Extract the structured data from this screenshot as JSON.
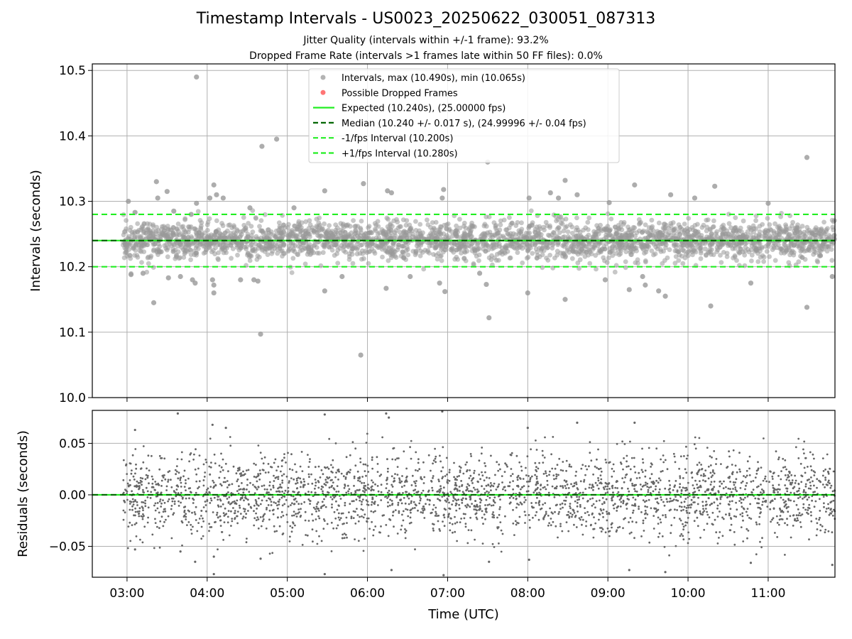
{
  "chart_data": [
    {
      "type": "scatter",
      "title": "Timestamp Intervals - US0023_20250622_030051_087313",
      "subtitles": [
        "Jitter Quality (intervals within +/-1 frame): 93.2%",
        "Dropped Frame Rate (intervals >1 frames late within 50 FF files): 0.0%"
      ],
      "xlabel": "",
      "ylabel": "Intervals (seconds)",
      "ylim": [
        10.0,
        10.51
      ],
      "xlim": [
        "02:34",
        "11:50"
      ],
      "yticks": [
        {
          "value": 10.0,
          "label": "10.0"
        },
        {
          "value": 10.1,
          "label": "10.1"
        },
        {
          "value": 10.2,
          "label": "10.2"
        },
        {
          "value": 10.3,
          "label": "10.3"
        },
        {
          "value": 10.4,
          "label": "10.4"
        },
        {
          "value": 10.5,
          "label": "10.5"
        }
      ],
      "grid": true,
      "legend_position": "top-center",
      "legend": [
        {
          "label": "Intervals, max (10.490s), min (10.065s)",
          "marker": "dot",
          "color": "#999999"
        },
        {
          "label": "Possible Dropped Frames",
          "marker": "dot",
          "color": "#ff6666"
        },
        {
          "label": "Expected (10.240s), (25.00000 fps)",
          "marker": "solid",
          "color": "#22ee22"
        },
        {
          "label": "Median (10.240 +/- 0.017 s), (24.99996 +/- 0.04 fps)",
          "marker": "dashed",
          "color": "#006400"
        },
        {
          "label": "-1/fps Interval (10.200s)",
          "marker": "dashed",
          "color": "#22ee22"
        },
        {
          "label": "+1/fps Interval (10.280s)",
          "marker": "dashed",
          "color": "#22ee22"
        }
      ],
      "lines": {
        "expected": 10.24,
        "median": 10.24,
        "minus_one_fps": 10.2,
        "plus_one_fps": 10.28
      },
      "series": [
        {
          "name": "Intervals, max (10.490s), min (10.065s)",
          "color": "#999999",
          "points": [
            {
              "x": "03:01",
              "y": 10.3
            },
            {
              "x": "03:03",
              "y": 10.188
            },
            {
              "x": "03:06",
              "y": 10.283
            },
            {
              "x": "03:12",
              "y": 10.19
            },
            {
              "x": "03:20",
              "y": 10.145
            },
            {
              "x": "03:22",
              "y": 10.33
            },
            {
              "x": "03:23",
              "y": 10.305
            },
            {
              "x": "03:30",
              "y": 10.315
            },
            {
              "x": "03:31",
              "y": 10.183
            },
            {
              "x": "03:35",
              "y": 10.285
            },
            {
              "x": "03:40",
              "y": 10.185
            },
            {
              "x": "03:48",
              "y": 10.28
            },
            {
              "x": "03:49",
              "y": 10.18
            },
            {
              "x": "03:51",
              "y": 10.175
            },
            {
              "x": "03:52",
              "y": 10.297
            },
            {
              "x": "03:52",
              "y": 10.49
            },
            {
              "x": "04:02",
              "y": 10.305
            },
            {
              "x": "04:04",
              "y": 10.18
            },
            {
              "x": "04:05",
              "y": 10.16
            },
            {
              "x": "04:05",
              "y": 10.172
            },
            {
              "x": "04:05",
              "y": 10.325
            },
            {
              "x": "04:07",
              "y": 10.31
            },
            {
              "x": "04:12",
              "y": 10.305
            },
            {
              "x": "04:25",
              "y": 10.18
            },
            {
              "x": "04:32",
              "y": 10.29
            },
            {
              "x": "04:35",
              "y": 10.18
            },
            {
              "x": "04:38",
              "y": 10.178
            },
            {
              "x": "04:40",
              "y": 10.097
            },
            {
              "x": "04:41",
              "y": 10.384
            },
            {
              "x": "04:52",
              "y": 10.395
            },
            {
              "x": "05:05",
              "y": 10.29
            },
            {
              "x": "05:28",
              "y": 10.163
            },
            {
              "x": "05:28",
              "y": 10.316
            },
            {
              "x": "05:41",
              "y": 10.185
            },
            {
              "x": "05:55",
              "y": 10.065
            },
            {
              "x": "05:57",
              "y": 10.327
            },
            {
              "x": "06:14",
              "y": 10.167
            },
            {
              "x": "06:15",
              "y": 10.316
            },
            {
              "x": "06:18",
              "y": 10.313
            },
            {
              "x": "06:32",
              "y": 10.185
            },
            {
              "x": "06:54",
              "y": 10.175
            },
            {
              "x": "06:56",
              "y": 10.305
            },
            {
              "x": "06:57",
              "y": 10.318
            },
            {
              "x": "06:58",
              "y": 10.162
            },
            {
              "x": "07:24",
              "y": 10.19
            },
            {
              "x": "07:29",
              "y": 10.173
            },
            {
              "x": "07:30",
              "y": 10.36
            },
            {
              "x": "07:31",
              "y": 10.122
            },
            {
              "x": "08:00",
              "y": 10.16
            },
            {
              "x": "08:01",
              "y": 10.305
            },
            {
              "x": "08:17",
              "y": 10.313
            },
            {
              "x": "08:23",
              "y": 10.305
            },
            {
              "x": "08:28",
              "y": 10.332
            },
            {
              "x": "08:28",
              "y": 10.15
            },
            {
              "x": "08:37",
              "y": 10.31
            },
            {
              "x": "08:58",
              "y": 10.18
            },
            {
              "x": "09:01",
              "y": 10.298
            },
            {
              "x": "09:16",
              "y": 10.165
            },
            {
              "x": "09:20",
              "y": 10.325
            },
            {
              "x": "09:26",
              "y": 10.185
            },
            {
              "x": "09:28",
              "y": 10.172
            },
            {
              "x": "09:38",
              "y": 10.163
            },
            {
              "x": "09:43",
              "y": 10.155
            },
            {
              "x": "09:47",
              "y": 10.31
            },
            {
              "x": "10:05",
              "y": 10.305
            },
            {
              "x": "10:17",
              "y": 10.14
            },
            {
              "x": "10:20",
              "y": 10.323
            },
            {
              "x": "10:47",
              "y": 10.175
            },
            {
              "x": "11:00",
              "y": 10.297
            },
            {
              "x": "11:29",
              "y": 10.367
            },
            {
              "x": "11:29",
              "y": 10.138
            },
            {
              "x": "11:48",
              "y": 10.185
            }
          ]
        }
      ]
    },
    {
      "type": "scatter",
      "xlabel": "Time (UTC)",
      "ylabel": "Residuals (seconds)",
      "ylim": [
        -0.08,
        0.082
      ],
      "xlim": [
        "02:34",
        "11:50"
      ],
      "xticks": [
        "03:00",
        "04:00",
        "05:00",
        "06:00",
        "07:00",
        "08:00",
        "09:00",
        "10:00",
        "11:00"
      ],
      "yticks": [
        {
          "value": -0.05,
          "label": "−0.05"
        },
        {
          "value": 0.0,
          "label": "0.00"
        },
        {
          "value": 0.05,
          "label": "0.05"
        }
      ],
      "grid": true,
      "lines": {
        "zero": 0.0
      },
      "series": [
        {
          "name": "Residuals",
          "color": "#666666",
          "points": [
            {
              "x": "03:06",
              "y": 0.063
            },
            {
              "x": "03:06",
              "y": -0.053
            },
            {
              "x": "03:38",
              "y": 0.079
            },
            {
              "x": "03:40",
              "y": -0.055
            },
            {
              "x": "03:51",
              "y": -0.065
            },
            {
              "x": "04:04",
              "y": 0.068
            },
            {
              "x": "04:05",
              "y": -0.06
            },
            {
              "x": "04:05",
              "y": -0.077
            },
            {
              "x": "04:14",
              "y": 0.065
            },
            {
              "x": "04:40",
              "y": -0.062
            },
            {
              "x": "05:28",
              "y": 0.078
            },
            {
              "x": "05:28",
              "y": -0.077
            },
            {
              "x": "06:14",
              "y": 0.079
            },
            {
              "x": "06:16",
              "y": 0.075
            },
            {
              "x": "06:18",
              "y": -0.073
            },
            {
              "x": "06:56",
              "y": 0.081
            },
            {
              "x": "06:57",
              "y": -0.078
            },
            {
              "x": "07:31",
              "y": -0.065
            },
            {
              "x": "08:00",
              "y": 0.065
            },
            {
              "x": "08:01",
              "y": -0.063
            },
            {
              "x": "08:37",
              "y": 0.07
            },
            {
              "x": "09:16",
              "y": -0.073
            },
            {
              "x": "09:20",
              "y": 0.07
            },
            {
              "x": "09:43",
              "y": -0.075
            },
            {
              "x": "10:47",
              "y": -0.066
            },
            {
              "x": "11:48",
              "y": -0.068
            }
          ]
        }
      ]
    }
  ]
}
